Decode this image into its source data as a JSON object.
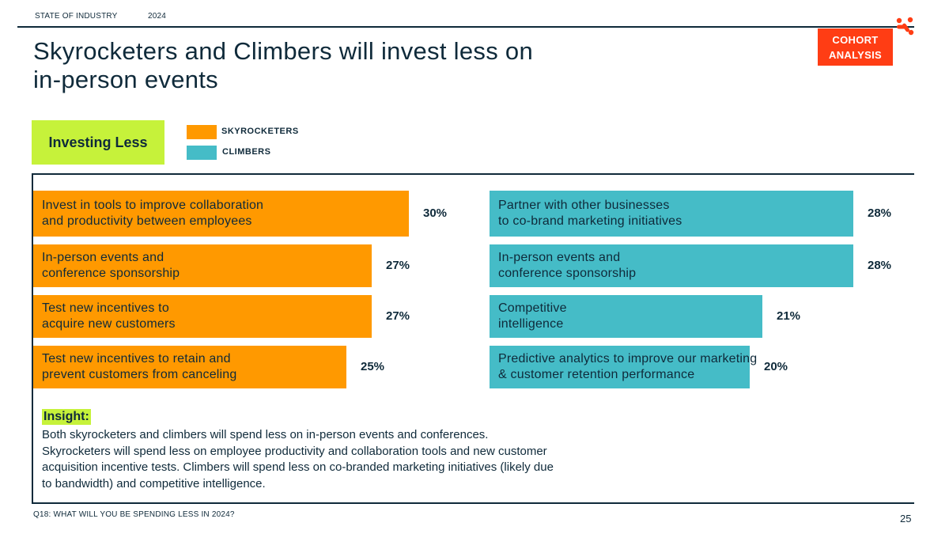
{
  "header": {
    "section": "STATE OF INDUSTRY",
    "year": "2024"
  },
  "title": "Skyrocketers and Climbers will invest less on in-person events",
  "badge": "COHORT\nANALYSIS",
  "category_label": "Investing Less",
  "colors": {
    "skyrocketers": "#ff9900",
    "climbers": "#45bcc7",
    "accent": "#c6f23a",
    "brand": "#ff3d14"
  },
  "chart_data": {
    "type": "bar",
    "orientation": "horizontal",
    "title": "Investing Less",
    "legend": [
      "SKYROCKETERS",
      "CLIMBERS"
    ],
    "series": [
      {
        "name": "SKYROCKETERS",
        "categories": [
          "Invest in tools to improve collaboration\nand productivity between employees",
          "In-person events and\nconference sponsorship",
          "Test new incentives to\nacquire new customers",
          "Test new incentives to retain and\nprevent customers from canceling"
        ],
        "values": [
          30,
          27,
          27,
          25
        ],
        "labels": [
          "30%",
          "27%",
          "27%",
          "25%"
        ]
      },
      {
        "name": "CLIMBERS",
        "categories": [
          "Partner with other businesses\nto co-brand marketing initiatives",
          "In-person events and\nconference sponsorship",
          "Competitive\nintelligence",
          "Predictive analytics to improve our marketing\n& customer retention performance"
        ],
        "values": [
          28,
          28,
          21,
          20
        ],
        "labels": [
          "28%",
          "28%",
          "21%",
          "20%"
        ]
      }
    ],
    "xlim": [
      0,
      30
    ]
  },
  "insight": {
    "label": "Insight:",
    "text": "Both skyrocketers and climbers will spend less on in-person events and conferences. Skyrocketers will spend less on employee productivity and collaboration tools and new customer acquisition incentive tests. Climbers will spend less on co-branded marketing initiatives (likely due to bandwidth) and competitive intelligence."
  },
  "footer": {
    "question": "Q18: WHAT WILL YOU BE SPENDING LESS IN 2024?",
    "page": "25"
  }
}
